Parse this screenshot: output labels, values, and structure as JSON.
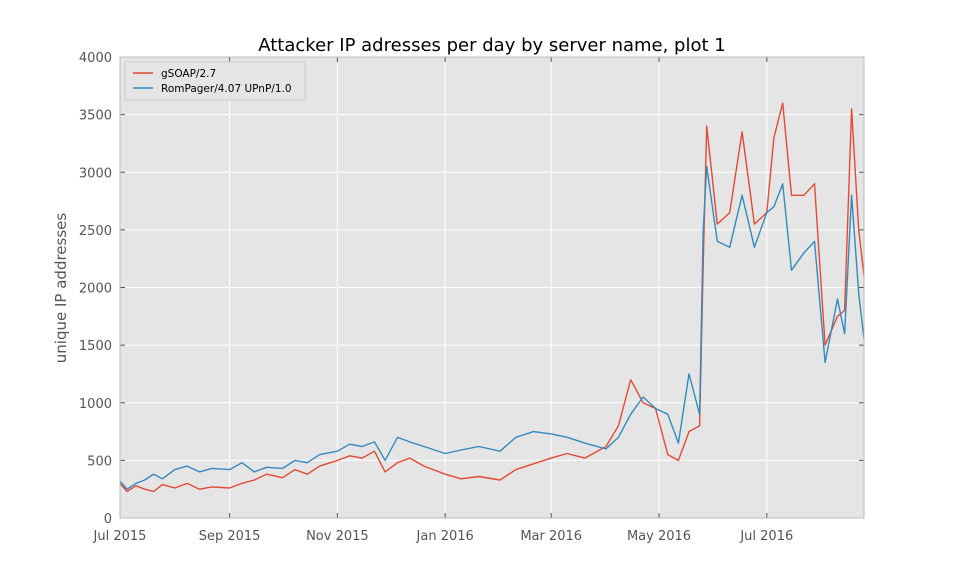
{
  "chart_data": {
    "type": "line",
    "title": "Attacker IP adresses per day by server name, plot 1",
    "xlabel": "",
    "ylabel": "unique IP addresses",
    "x_range": [
      "2015-07-01",
      "2016-08-25"
    ],
    "ylim": [
      0,
      4000
    ],
    "y_ticks": [
      0,
      500,
      1000,
      1500,
      2000,
      2500,
      3000,
      3500,
      4000
    ],
    "x_ticks": [
      {
        "date": "2015-07-01",
        "label": "Jul 2015"
      },
      {
        "date": "2015-09-01",
        "label": "Sep 2015"
      },
      {
        "date": "2015-11-01",
        "label": "Nov 2015"
      },
      {
        "date": "2016-01-01",
        "label": "Jan 2016"
      },
      {
        "date": "2016-03-01",
        "label": "Mar 2016"
      },
      {
        "date": "2016-05-01",
        "label": "May 2016"
      },
      {
        "date": "2016-07-01",
        "label": "Jul 2016"
      }
    ],
    "grid": true,
    "background": "#e5e5e5",
    "legend_position": "top-left",
    "series": [
      {
        "name": "gSOAP/2.7",
        "color": "#e24a33",
        "points": [
          [
            "2015-07-01",
            300
          ],
          [
            "2015-07-05",
            230
          ],
          [
            "2015-07-10",
            280
          ],
          [
            "2015-07-15",
            250
          ],
          [
            "2015-07-20",
            230
          ],
          [
            "2015-07-25",
            290
          ],
          [
            "2015-08-01",
            260
          ],
          [
            "2015-08-08",
            300
          ],
          [
            "2015-08-15",
            250
          ],
          [
            "2015-08-22",
            270
          ],
          [
            "2015-09-01",
            260
          ],
          [
            "2015-09-08",
            300
          ],
          [
            "2015-09-15",
            330
          ],
          [
            "2015-09-22",
            380
          ],
          [
            "2015-10-01",
            350
          ],
          [
            "2015-10-08",
            420
          ],
          [
            "2015-10-15",
            380
          ],
          [
            "2015-10-22",
            450
          ],
          [
            "2015-11-01",
            500
          ],
          [
            "2015-11-08",
            540
          ],
          [
            "2015-11-15",
            520
          ],
          [
            "2015-11-22",
            580
          ],
          [
            "2015-11-28",
            400
          ],
          [
            "2015-12-05",
            480
          ],
          [
            "2015-12-12",
            520
          ],
          [
            "2015-12-20",
            450
          ],
          [
            "2016-01-01",
            380
          ],
          [
            "2016-01-10",
            340
          ],
          [
            "2016-01-20",
            360
          ],
          [
            "2016-02-01",
            330
          ],
          [
            "2016-02-10",
            420
          ],
          [
            "2016-02-20",
            470
          ],
          [
            "2016-03-01",
            520
          ],
          [
            "2016-03-10",
            560
          ],
          [
            "2016-03-20",
            520
          ],
          [
            "2016-04-01",
            620
          ],
          [
            "2016-04-08",
            800
          ],
          [
            "2016-04-15",
            1200
          ],
          [
            "2016-04-22",
            1000
          ],
          [
            "2016-04-29",
            950
          ],
          [
            "2016-05-06",
            550
          ],
          [
            "2016-05-12",
            500
          ],
          [
            "2016-05-18",
            750
          ],
          [
            "2016-05-24",
            800
          ],
          [
            "2016-05-26",
            2200
          ],
          [
            "2016-05-28",
            3400
          ],
          [
            "2016-06-03",
            2550
          ],
          [
            "2016-06-10",
            2650
          ],
          [
            "2016-06-17",
            3350
          ],
          [
            "2016-06-24",
            2550
          ],
          [
            "2016-07-01",
            2650
          ],
          [
            "2016-07-05",
            3300
          ],
          [
            "2016-07-10",
            3600
          ],
          [
            "2016-07-15",
            2800
          ],
          [
            "2016-07-22",
            2800
          ],
          [
            "2016-07-28",
            2900
          ],
          [
            "2016-08-03",
            1500
          ],
          [
            "2016-08-10",
            1750
          ],
          [
            "2016-08-14",
            1800
          ],
          [
            "2016-08-18",
            3550
          ],
          [
            "2016-08-22",
            2500
          ],
          [
            "2016-08-25",
            2100
          ]
        ]
      },
      {
        "name": "RomPager/4.07 UPnP/1.0",
        "color": "#348abd",
        "points": [
          [
            "2015-07-01",
            320
          ],
          [
            "2015-07-05",
            250
          ],
          [
            "2015-07-10",
            300
          ],
          [
            "2015-07-15",
            330
          ],
          [
            "2015-07-20",
            380
          ],
          [
            "2015-07-25",
            340
          ],
          [
            "2015-08-01",
            420
          ],
          [
            "2015-08-08",
            450
          ],
          [
            "2015-08-15",
            400
          ],
          [
            "2015-08-22",
            430
          ],
          [
            "2015-09-01",
            420
          ],
          [
            "2015-09-08",
            480
          ],
          [
            "2015-09-15",
            400
          ],
          [
            "2015-09-22",
            440
          ],
          [
            "2015-10-01",
            430
          ],
          [
            "2015-10-08",
            500
          ],
          [
            "2015-10-15",
            480
          ],
          [
            "2015-10-22",
            550
          ],
          [
            "2015-11-01",
            580
          ],
          [
            "2015-11-08",
            640
          ],
          [
            "2015-11-15",
            620
          ],
          [
            "2015-11-22",
            660
          ],
          [
            "2015-11-28",
            500
          ],
          [
            "2015-12-05",
            700
          ],
          [
            "2015-12-12",
            660
          ],
          [
            "2015-12-20",
            620
          ],
          [
            "2016-01-01",
            560
          ],
          [
            "2016-01-10",
            590
          ],
          [
            "2016-01-20",
            620
          ],
          [
            "2016-02-01",
            580
          ],
          [
            "2016-02-10",
            700
          ],
          [
            "2016-02-20",
            750
          ],
          [
            "2016-03-01",
            730
          ],
          [
            "2016-03-10",
            700
          ],
          [
            "2016-03-20",
            650
          ],
          [
            "2016-04-01",
            600
          ],
          [
            "2016-04-08",
            700
          ],
          [
            "2016-04-15",
            900
          ],
          [
            "2016-04-22",
            1050
          ],
          [
            "2016-04-29",
            950
          ],
          [
            "2016-05-06",
            900
          ],
          [
            "2016-05-12",
            650
          ],
          [
            "2016-05-18",
            1250
          ],
          [
            "2016-05-24",
            900
          ],
          [
            "2016-05-26",
            2500
          ],
          [
            "2016-05-28",
            3050
          ],
          [
            "2016-06-03",
            2400
          ],
          [
            "2016-06-10",
            2350
          ],
          [
            "2016-06-17",
            2800
          ],
          [
            "2016-06-24",
            2350
          ],
          [
            "2016-07-01",
            2650
          ],
          [
            "2016-07-05",
            2700
          ],
          [
            "2016-07-10",
            2900
          ],
          [
            "2016-07-15",
            2150
          ],
          [
            "2016-07-22",
            2300
          ],
          [
            "2016-07-28",
            2400
          ],
          [
            "2016-08-03",
            1350
          ],
          [
            "2016-08-10",
            1900
          ],
          [
            "2016-08-14",
            1600
          ],
          [
            "2016-08-18",
            2800
          ],
          [
            "2016-08-22",
            1950
          ],
          [
            "2016-08-25",
            1550
          ]
        ]
      }
    ]
  }
}
